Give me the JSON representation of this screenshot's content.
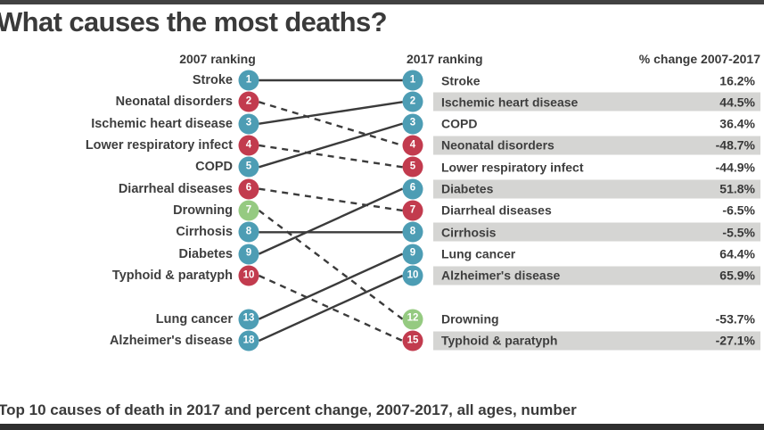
{
  "title": "What causes the most deaths?",
  "caption": "Top 10 causes of death in 2017 and percent change, 2007-2017, all ages, number",
  "headers": {
    "left": "2007 ranking",
    "right": "2017 ranking",
    "change": "% change 2007-2017"
  },
  "colors": {
    "blue": "#4D9DB4",
    "red": "#C23B4E",
    "green": "#95CA81",
    "line": "#3B3B3B",
    "row_shade": "#D5D5D3",
    "text": "#3A3A3A"
  },
  "chart_data": {
    "type": "slope",
    "title": "What causes the most deaths?",
    "subtitle": "Top 10 causes of death in 2017 and percent change, 2007-2017, all ages, number",
    "columns": [
      "2007 ranking",
      "2017 ranking",
      "% change 2007-2017"
    ],
    "legend_note": "solid line = rank improved or unchanged, dashed line = rank worsened; circle colors: blue/red/green categories",
    "rows": [
      {
        "cause": "Stroke",
        "rank_2007": 1,
        "rank_2017": 1,
        "pct_change": "16.2%",
        "color": "blue",
        "line": "solid"
      },
      {
        "cause": "Ischemic heart disease",
        "rank_2007": 3,
        "rank_2017": 2,
        "pct_change": "44.5%",
        "color": "blue",
        "line": "solid"
      },
      {
        "cause": "COPD",
        "rank_2007": 5,
        "rank_2017": 3,
        "pct_change": "36.4%",
        "color": "blue",
        "line": "solid"
      },
      {
        "cause": "Neonatal disorders",
        "rank_2007": 2,
        "rank_2017": 4,
        "pct_change": "-48.7%",
        "color": "red",
        "line": "dashed"
      },
      {
        "cause": "Lower respiratory infect",
        "rank_2007": 4,
        "rank_2017": 5,
        "pct_change": "-44.9%",
        "color": "red",
        "line": "dashed"
      },
      {
        "cause": "Diabetes",
        "rank_2007": 9,
        "rank_2017": 6,
        "pct_change": "51.8%",
        "color": "blue",
        "line": "solid"
      },
      {
        "cause": "Diarrheal diseases",
        "rank_2007": 6,
        "rank_2017": 7,
        "pct_change": "-6.5%",
        "color": "red",
        "line": "dashed"
      },
      {
        "cause": "Cirrhosis",
        "rank_2007": 8,
        "rank_2017": 8,
        "pct_change": "-5.5%",
        "color": "blue",
        "line": "solid"
      },
      {
        "cause": "Lung cancer",
        "rank_2007": 13,
        "rank_2017": 9,
        "pct_change": "64.4%",
        "color": "blue",
        "line": "solid"
      },
      {
        "cause": "Alzheimer's disease",
        "rank_2007": 18,
        "rank_2017": 10,
        "pct_change": "65.9%",
        "color": "blue",
        "line": "solid"
      },
      {
        "cause": "Drowning",
        "rank_2007": 7,
        "rank_2017": 12,
        "pct_change": "-53.7%",
        "color": "green",
        "line": "dashed"
      },
      {
        "cause": "Typhoid & paratyph",
        "rank_2007": 10,
        "rank_2017": 15,
        "pct_change": "-27.1%",
        "color": "red",
        "line": "dashed"
      }
    ]
  }
}
